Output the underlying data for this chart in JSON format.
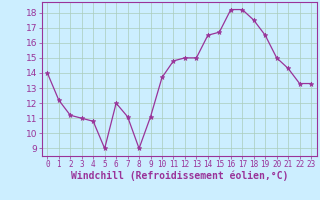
{
  "x": [
    0,
    1,
    2,
    3,
    4,
    5,
    6,
    7,
    8,
    9,
    10,
    11,
    12,
    13,
    14,
    15,
    16,
    17,
    18,
    19,
    20,
    21,
    22,
    23
  ],
  "y": [
    14.0,
    12.2,
    11.2,
    11.0,
    10.8,
    9.0,
    12.0,
    11.1,
    9.0,
    11.1,
    13.7,
    14.8,
    15.0,
    15.0,
    16.5,
    16.7,
    18.2,
    18.2,
    17.5,
    16.5,
    15.0,
    14.3,
    13.3,
    13.3
  ],
  "line_color": "#993399",
  "marker": "*",
  "marker_size": 3.5,
  "bg_color": "#cceeff",
  "grid_color": "#aaccbb",
  "xlabel": "Windchill (Refroidissement éolien,°C)",
  "xlim": [
    -0.5,
    23.5
  ],
  "ylim": [
    8.5,
    18.7
  ],
  "yticks": [
    9,
    10,
    11,
    12,
    13,
    14,
    15,
    16,
    17,
    18
  ],
  "xtick_labels": [
    "0",
    "1",
    "2",
    "3",
    "4",
    "5",
    "6",
    "7",
    "8",
    "9",
    "10",
    "11",
    "12",
    "13",
    "14",
    "15",
    "16",
    "17",
    "18",
    "19",
    "20",
    "21",
    "22",
    "23"
  ],
  "tick_color": "#993399",
  "label_color": "#993399",
  "ytick_fontsize": 6.5,
  "xtick_fontsize": 5.5,
  "xlabel_fontsize": 7.0
}
